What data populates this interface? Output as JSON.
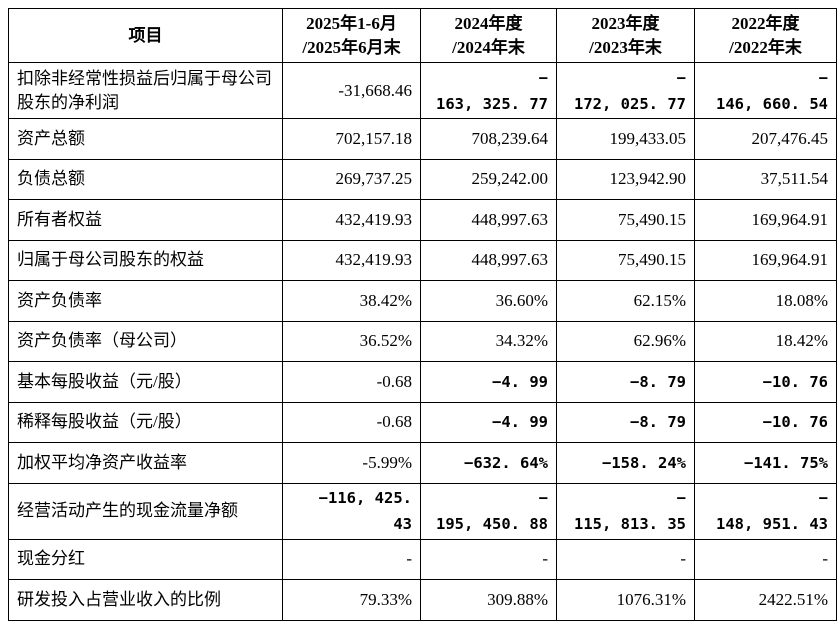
{
  "table": {
    "headers": [
      "项目",
      "2025年1-6月\n/2025年6月末",
      "2024年度\n/2024年末",
      "2023年度\n/2023年末",
      "2022年度\n/2022年末"
    ],
    "rows": [
      {
        "label": "扣除非经常性损益后归属于母公司股东的净利润",
        "values": [
          "-31,668.46",
          "−\n163, 325. 77",
          "−\n172, 025. 77",
          "−\n146, 660. 54"
        ],
        "bold": [
          false,
          true,
          true,
          true
        ]
      },
      {
        "label": "资产总额",
        "values": [
          "702,157.18",
          "708,239.64",
          "199,433.05",
          "207,476.45"
        ],
        "bold": [
          false,
          false,
          false,
          false
        ]
      },
      {
        "label": "负债总额",
        "values": [
          "269,737.25",
          "259,242.00",
          "123,942.90",
          "37,511.54"
        ],
        "bold": [
          false,
          false,
          false,
          false
        ]
      },
      {
        "label": "所有者权益",
        "values": [
          "432,419.93",
          "448,997.63",
          "75,490.15",
          "169,964.91"
        ],
        "bold": [
          false,
          false,
          false,
          false
        ]
      },
      {
        "label": "归属于母公司股东的权益",
        "values": [
          "432,419.93",
          "448,997.63",
          "75,490.15",
          "169,964.91"
        ],
        "bold": [
          false,
          false,
          false,
          false
        ]
      },
      {
        "label": "资产负债率",
        "values": [
          "38.42%",
          "36.60%",
          "62.15%",
          "18.08%"
        ],
        "bold": [
          false,
          false,
          false,
          false
        ]
      },
      {
        "label": "资产负债率（母公司）",
        "values": [
          "36.52%",
          "34.32%",
          "62.96%",
          "18.42%"
        ],
        "bold": [
          false,
          false,
          false,
          false
        ]
      },
      {
        "label": "基本每股收益（元/股）",
        "values": [
          "-0.68",
          "−4. 99",
          "−8. 79",
          "−10. 76"
        ],
        "bold": [
          false,
          true,
          true,
          true
        ]
      },
      {
        "label": "稀释每股收益（元/股）",
        "values": [
          "-0.68",
          "−4. 99",
          "−8. 79",
          "−10. 76"
        ],
        "bold": [
          false,
          true,
          true,
          true
        ]
      },
      {
        "label": "加权平均净资产收益率",
        "values": [
          "-5.99%",
          "−632. 64%",
          "−158. 24%",
          "−141. 75%"
        ],
        "bold": [
          false,
          true,
          true,
          true
        ]
      },
      {
        "label": "经营活动产生的现金流量净额",
        "values": [
          "−116, 425. 43",
          "−\n195, 450. 88",
          "−\n115, 813. 35",
          "−\n148, 951. 43"
        ],
        "bold": [
          true,
          true,
          true,
          true
        ]
      },
      {
        "label": "现金分红",
        "values": [
          "-",
          "-",
          "-",
          "-"
        ],
        "bold": [
          false,
          false,
          false,
          false
        ]
      },
      {
        "label": "研发投入占营业收入的比例",
        "values": [
          "79.33%",
          "309.88%",
          "1076.31%",
          "2422.51%"
        ],
        "bold": [
          false,
          false,
          false,
          false
        ]
      }
    ]
  }
}
